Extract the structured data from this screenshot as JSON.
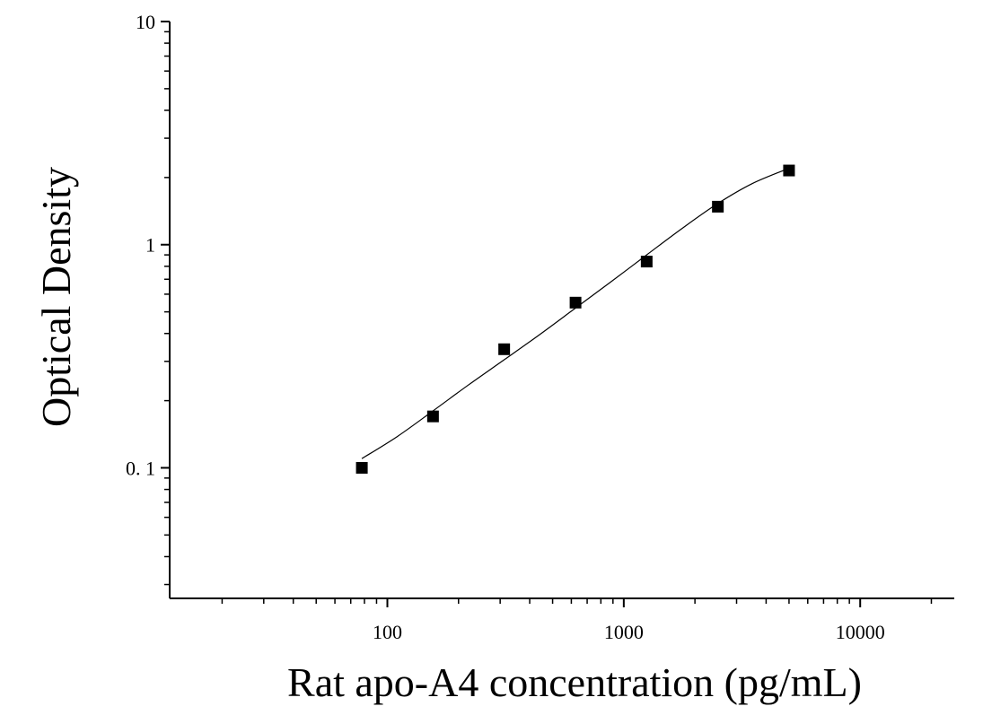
{
  "chart_data": {
    "type": "scatter",
    "xlabel": "Rat apo-A4 concentration (pg/mL)",
    "ylabel": "Optical Density",
    "xscale": "log",
    "yscale": "log",
    "xlim": [
      12,
      25000
    ],
    "ylim": [
      0.026,
      10
    ],
    "x_ticks": [
      {
        "value": 100,
        "label": "100"
      },
      {
        "value": 1000,
        "label": "1000"
      },
      {
        "value": 10000,
        "label": "10000"
      }
    ],
    "y_ticks": [
      {
        "value": 0.1,
        "label": "0. 1"
      },
      {
        "value": 1,
        "label": "1"
      },
      {
        "value": 10,
        "label": "10"
      }
    ],
    "grid": false,
    "legend": "none",
    "marker": "square",
    "color": "#000000",
    "series": [
      {
        "x": [
          78,
          156,
          312,
          625,
          1250,
          2500,
          5000
        ],
        "y": [
          0.1,
          0.17,
          0.34,
          0.55,
          0.84,
          1.48,
          2.15
        ]
      }
    ],
    "fit_curve": {
      "x": [
        78,
        110,
        156,
        220,
        312,
        440,
        625,
        880,
        1250,
        1760,
        2500,
        3500,
        5000
      ],
      "y": [
        0.11,
        0.138,
        0.18,
        0.235,
        0.305,
        0.395,
        0.52,
        0.68,
        0.9,
        1.18,
        1.53,
        1.88,
        2.2
      ]
    }
  }
}
